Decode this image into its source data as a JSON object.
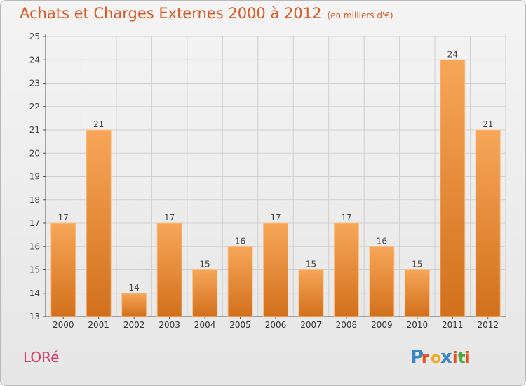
{
  "header": {
    "title": "Achats et Charges Externes 2000 à 2012",
    "subtitle": "(en milliers d'€)"
  },
  "footer": {
    "commune": "LORé",
    "logo_text": "Proxiti"
  },
  "colors": {
    "title": "#d85a24",
    "commune": "#d83a68",
    "bar_light": "#f7a658",
    "bar_dark": "#d2701c",
    "grid": "#cfcfcf",
    "logo": [
      "#3a86c8",
      "#e8501c",
      "#f0a820",
      "#3a86c8",
      "#e8501c",
      "#4aa83c",
      "#e8501c"
    ]
  },
  "chart_data": {
    "type": "bar",
    "title": "Achats et Charges Externes 2000 à 2012",
    "subtitle": "(en milliers d'€)",
    "xlabel": "",
    "ylabel": "",
    "categories": [
      "2000",
      "2001",
      "2002",
      "2003",
      "2004",
      "2005",
      "2006",
      "2007",
      "2008",
      "2009",
      "2010",
      "2011",
      "2012"
    ],
    "values": [
      17,
      21,
      14,
      17,
      15,
      16,
      17,
      15,
      17,
      16,
      15,
      24,
      21
    ],
    "ylim": [
      13,
      25
    ],
    "yticks": [
      13,
      14,
      15,
      16,
      17,
      18,
      19,
      20,
      21,
      22,
      23,
      24,
      25
    ],
    "grid": true,
    "data_labels": true
  }
}
